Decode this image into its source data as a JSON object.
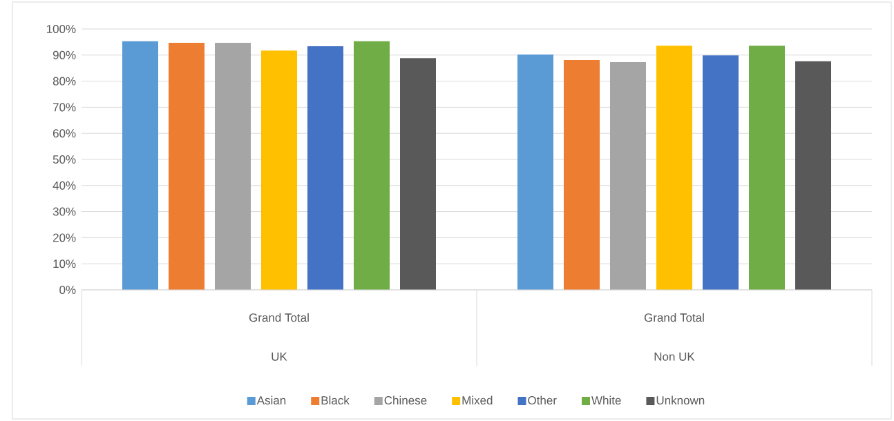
{
  "chart_data": {
    "type": "bar",
    "categories": [
      "UK",
      "Non UK"
    ],
    "annotations": [
      "Grand Total",
      "Grand Total"
    ],
    "series": [
      {
        "name": "Asian",
        "color": "#5b9bd5",
        "values": [
          95.3,
          90.2
        ]
      },
      {
        "name": "Black",
        "color": "#ed7d31",
        "values": [
          94.7,
          88.1
        ]
      },
      {
        "name": "Chinese",
        "color": "#a5a5a5",
        "values": [
          94.7,
          87.3
        ]
      },
      {
        "name": "Mixed",
        "color": "#ffc000",
        "values": [
          91.7,
          93.6
        ]
      },
      {
        "name": "Other",
        "color": "#4472c4",
        "values": [
          93.4,
          89.9
        ]
      },
      {
        "name": "White",
        "color": "#70ad47",
        "values": [
          95.3,
          93.6
        ]
      },
      {
        "name": "Unknown",
        "color": "#595959",
        "values": [
          88.8,
          87.6
        ]
      }
    ],
    "ylim": [
      0,
      100
    ],
    "yticks": [
      {
        "value": 0,
        "label": "0%"
      },
      {
        "value": 10,
        "label": "10%"
      },
      {
        "value": 20,
        "label": "20%"
      },
      {
        "value": 30,
        "label": "30%"
      },
      {
        "value": 40,
        "label": "40%"
      },
      {
        "value": 50,
        "label": "50%"
      },
      {
        "value": 60,
        "label": "60%"
      },
      {
        "value": 70,
        "label": "70%"
      },
      {
        "value": 80,
        "label": "80%"
      },
      {
        "value": 90,
        "label": "90%"
      },
      {
        "value": 100,
        "label": "100%"
      }
    ],
    "grid": "y",
    "legend": "bottom"
  }
}
